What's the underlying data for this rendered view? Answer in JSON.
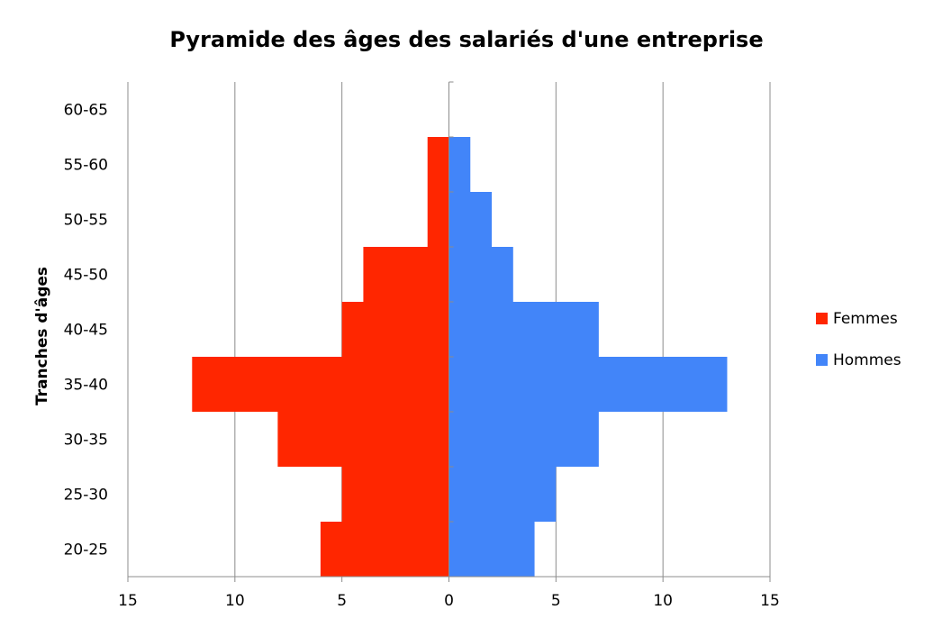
{
  "chart_data": {
    "type": "bar",
    "orientation": "horizontal",
    "title": "Pyramide des âges des salariés d'une entreprise",
    "xlabel": "",
    "ylabel": "Tranches d'âges",
    "categories": [
      "20-25",
      "25-30",
      "30-35",
      "35-40",
      "40-45",
      "45-50",
      "50-55",
      "55-60",
      "60-65"
    ],
    "series": [
      {
        "name": "Femmes",
        "color": "#ff2600",
        "values": [
          6,
          5,
          8,
          12,
          5,
          4,
          1,
          1,
          0
        ]
      },
      {
        "name": "Hommes",
        "color": "#4285f9",
        "values": [
          4,
          5,
          7,
          13,
          7,
          3,
          2,
          1,
          0
        ]
      }
    ],
    "xlim": [
      -15,
      15
    ],
    "xticks": [
      -15,
      -10,
      -5,
      0,
      5,
      10,
      15
    ],
    "xtick_labels": [
      "15",
      "10",
      "5",
      "0",
      "5",
      "10",
      "15"
    ],
    "grid": true,
    "legend_position": "right"
  }
}
